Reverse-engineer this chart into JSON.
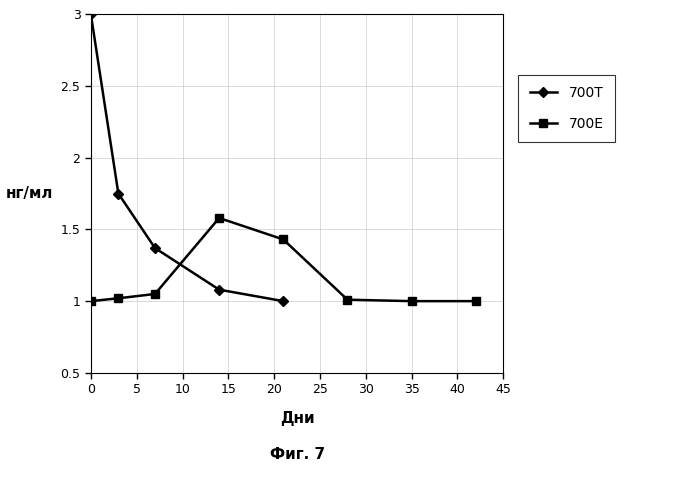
{
  "series_700T": {
    "x": [
      0,
      3,
      7,
      14,
      21
    ],
    "y": [
      3.0,
      1.75,
      1.37,
      1.08,
      1.0
    ],
    "label": "700T",
    "color": "#000000",
    "marker": "D",
    "markersize": 5,
    "linewidth": 1.8
  },
  "series_700E": {
    "x": [
      0,
      3,
      7,
      14,
      21,
      28,
      35,
      42
    ],
    "y": [
      1.0,
      1.02,
      1.05,
      1.58,
      1.43,
      1.01,
      1.0,
      1.0
    ],
    "label": "700E",
    "color": "#000000",
    "marker": "s",
    "markersize": 6,
    "linewidth": 1.8
  },
  "xlim": [
    0,
    45
  ],
  "ylim": [
    0.5,
    3.0
  ],
  "xticks": [
    0,
    5,
    10,
    15,
    20,
    25,
    30,
    35,
    40,
    45
  ],
  "yticks": [
    0.5,
    1.0,
    1.5,
    2.0,
    2.5,
    3.0
  ],
  "xlabel": "Дни",
  "ylabel": "нг/мл",
  "caption": "Фиг. 7",
  "background_color": "#ffffff",
  "grid_color": "#aaaaaa",
  "title_fontsize": 11
}
